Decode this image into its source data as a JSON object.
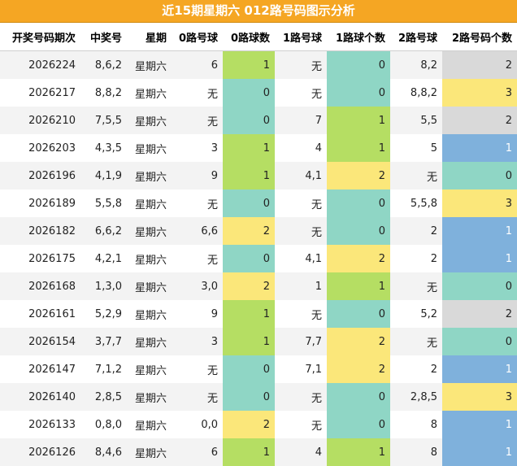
{
  "title": "近15期星期六 012路号码图示分析",
  "headers": [
    "开奖号码期次",
    "中奖号",
    "星期",
    "0路号球",
    "0路球数",
    "1路号球",
    "1路球个数",
    "2路号球",
    "2路号码个数"
  ],
  "rows": [
    {
      "issue": "2026224",
      "number": "8,6,2",
      "weekday": "星期六",
      "r0": "6",
      "r0n": "1",
      "r1": "无",
      "r1n": "0",
      "r2": "8,2",
      "r2n": "2"
    },
    {
      "issue": "2026217",
      "number": "8,8,2",
      "weekday": "星期六",
      "r0": "无",
      "r0n": "0",
      "r1": "无",
      "r1n": "0",
      "r2": "8,8,2",
      "r2n": "3"
    },
    {
      "issue": "2026210",
      "number": "7,5,5",
      "weekday": "星期六",
      "r0": "无",
      "r0n": "0",
      "r1": "7",
      "r1n": "1",
      "r2": "5,5",
      "r2n": "2"
    },
    {
      "issue": "2026203",
      "number": "4,3,5",
      "weekday": "星期六",
      "r0": "3",
      "r0n": "1",
      "r1": "4",
      "r1n": "1",
      "r2": "5",
      "r2n": "1"
    },
    {
      "issue": "2026196",
      "number": "4,1,9",
      "weekday": "星期六",
      "r0": "9",
      "r0n": "1",
      "r1": "4,1",
      "r1n": "2",
      "r2": "无",
      "r2n": "0"
    },
    {
      "issue": "2026189",
      "number": "5,5,8",
      "weekday": "星期六",
      "r0": "无",
      "r0n": "0",
      "r1": "无",
      "r1n": "0",
      "r2": "5,5,8",
      "r2n": "3"
    },
    {
      "issue": "2026182",
      "number": "6,6,2",
      "weekday": "星期六",
      "r0": "6,6",
      "r0n": "2",
      "r1": "无",
      "r1n": "0",
      "r2": "2",
      "r2n": "1"
    },
    {
      "issue": "2026175",
      "number": "4,2,1",
      "weekday": "星期六",
      "r0": "无",
      "r0n": "0",
      "r1": "4,1",
      "r1n": "2",
      "r2": "2",
      "r2n": "1"
    },
    {
      "issue": "2026168",
      "number": "1,3,0",
      "weekday": "星期六",
      "r0": "3,0",
      "r0n": "2",
      "r1": "1",
      "r1n": "1",
      "r2": "无",
      "r2n": "0"
    },
    {
      "issue": "2026161",
      "number": "5,2,9",
      "weekday": "星期六",
      "r0": "9",
      "r0n": "1",
      "r1": "无",
      "r1n": "0",
      "r2": "5,2",
      "r2n": "2"
    },
    {
      "issue": "2026154",
      "number": "3,7,7",
      "weekday": "星期六",
      "r0": "3",
      "r0n": "1",
      "r1": "7,7",
      "r1n": "2",
      "r2": "无",
      "r2n": "0"
    },
    {
      "issue": "2026147",
      "number": "7,1,2",
      "weekday": "星期六",
      "r0": "无",
      "r0n": "0",
      "r1": "7,1",
      "r1n": "2",
      "r2": "2",
      "r2n": "1"
    },
    {
      "issue": "2026140",
      "number": "2,8,5",
      "weekday": "星期六",
      "r0": "无",
      "r0n": "0",
      "r1": "无",
      "r1n": "0",
      "r2": "2,8,5",
      "r2n": "3"
    },
    {
      "issue": "2026133",
      "number": "0,8,0",
      "weekday": "星期六",
      "r0": "0,0",
      "r0n": "2",
      "r1": "无",
      "r1n": "0",
      "r2": "8",
      "r2n": "1"
    },
    {
      "issue": "2026126",
      "number": "8,4,6",
      "weekday": "星期六",
      "r0": "6",
      "r0n": "1",
      "r1": "4",
      "r1n": "1",
      "r2": "8",
      "r2n": "1"
    }
  ],
  "colors": {
    "header_bar": "#f5a623",
    "count_0_r0": "#8fd6c5",
    "count_1_r0": "#b5de63",
    "count_2_r0": "#fbe77a",
    "count_0_r1": "#8fd6c5",
    "count_1_r1": "#b5de63",
    "count_2_r1": "#fbe77a",
    "count_0_r2": "#8fd6c5",
    "count_1_r2": "#7fb1dc",
    "count_2_r2": "#d9d9d9",
    "count_3_r2": "#fbe77a"
  }
}
